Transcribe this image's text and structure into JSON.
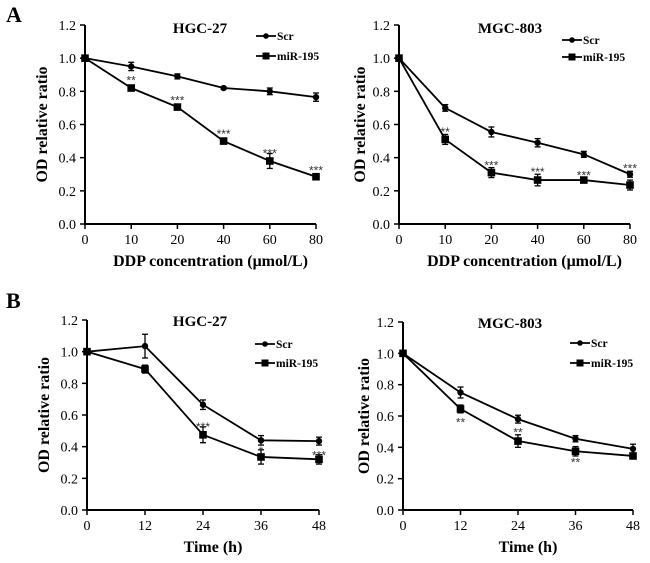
{
  "figure": {
    "panel_labels": [
      "A",
      "B"
    ]
  },
  "chart_data": [
    {
      "id": "A-HGC27",
      "panel": "A",
      "type": "line",
      "title": "HGC-27",
      "xlabel": "DDP concentration (μmol/L)",
      "ylabel": "OD relative ratio",
      "x_scale": "categorical",
      "categories": [
        "0",
        "10",
        "20",
        "40",
        "60",
        "80"
      ],
      "ylim": [
        0,
        1.2
      ],
      "yticks": [
        "0.0",
        "0.2",
        "0.4",
        "0.6",
        "0.8",
        "1.0",
        "1.2"
      ],
      "legend": "top-right",
      "grid": false,
      "series": [
        {
          "name": "Scr",
          "marker": "circle",
          "values": [
            1.0,
            0.95,
            0.89,
            0.82,
            0.8,
            0.765
          ],
          "errors": [
            0,
            0.025,
            0.015,
            0.008,
            0.02,
            0.025
          ]
        },
        {
          "name": "miR-195",
          "marker": "square",
          "values": [
            1.0,
            0.82,
            0.705,
            0.5,
            0.38,
            0.285
          ],
          "errors": [
            0,
            0.015,
            0.015,
            0.012,
            0.045,
            0.012
          ]
        }
      ],
      "annotations": [
        {
          "x": "10",
          "text": "**",
          "y": 0.87
        },
        {
          "x": "20",
          "text": "***",
          "y": 0.75
        },
        {
          "x": "40",
          "text": "***",
          "y": 0.55
        },
        {
          "x": "60",
          "text": "***",
          "y": 0.43
        },
        {
          "x": "80",
          "text": "***",
          "y": 0.33
        }
      ]
    },
    {
      "id": "A-MGC803",
      "panel": "A",
      "type": "line",
      "title": "MGC-803",
      "xlabel": "DDP concentration (μmol/L)",
      "ylabel": "OD relative ratio",
      "x_scale": "categorical",
      "categories": [
        "0",
        "10",
        "20",
        "40",
        "60",
        "80"
      ],
      "ylim": [
        0,
        1.2
      ],
      "yticks": [
        "0.0",
        "0.2",
        "0.4",
        "0.6",
        "0.8",
        "1.0",
        "1.2"
      ],
      "legend": "top-right",
      "grid": false,
      "series": [
        {
          "name": "Scr",
          "marker": "circle",
          "values": [
            1.0,
            0.7,
            0.555,
            0.49,
            0.42,
            0.3
          ],
          "errors": [
            0,
            0.02,
            0.03,
            0.025,
            0.018,
            0.018
          ]
        },
        {
          "name": "miR-195",
          "marker": "square",
          "values": [
            1.0,
            0.51,
            0.31,
            0.265,
            0.265,
            0.235
          ],
          "errors": [
            0,
            0.03,
            0.03,
            0.035,
            0.01,
            0.03
          ]
        }
      ],
      "annotations": [
        {
          "x": "10",
          "text": "**",
          "y": 0.56
        },
        {
          "x": "20",
          "text": "***",
          "y": 0.36
        },
        {
          "x": "40",
          "text": "***",
          "y": 0.32
        },
        {
          "x": "60",
          "text": "***",
          "y": 0.3
        },
        {
          "x": "80",
          "text": "***",
          "y": 0.34
        }
      ]
    },
    {
      "id": "B-HGC27",
      "panel": "B",
      "type": "line",
      "title": "HGC-27",
      "xlabel": "Time (h)",
      "ylabel": "OD relative ratio",
      "x_scale": "categorical",
      "categories": [
        "0",
        "12",
        "24",
        "36",
        "48"
      ],
      "ylim": [
        0,
        1.2
      ],
      "yticks": [
        "0.0",
        "0.2",
        "0.4",
        "0.6",
        "0.8",
        "1.0",
        "1.2"
      ],
      "legend": "top-right",
      "grid": false,
      "series": [
        {
          "name": "Scr",
          "marker": "circle",
          "values": [
            1.0,
            1.035,
            0.665,
            0.44,
            0.435
          ],
          "errors": [
            0,
            0.075,
            0.03,
            0.03,
            0.025
          ]
        },
        {
          "name": "miR-195",
          "marker": "square",
          "values": [
            1.0,
            0.89,
            0.475,
            0.335,
            0.32
          ],
          "errors": [
            0,
            0.025,
            0.05,
            0.045,
            0.03
          ]
        }
      ],
      "annotations": [
        {
          "x": "24",
          "text": "***",
          "y": 0.53
        },
        {
          "x": "36",
          "text": "*",
          "y": 0.38
        },
        {
          "x": "48",
          "text": "***",
          "y": 0.35
        }
      ]
    },
    {
      "id": "B-MGC803",
      "panel": "B",
      "type": "line",
      "title": "MGC-803",
      "xlabel": "Time (h)",
      "ylabel": "OD relative ratio",
      "x_scale": "categorical",
      "categories": [
        "0",
        "12",
        "24",
        "36",
        "48"
      ],
      "ylim": [
        0,
        1.2
      ],
      "yticks": [
        "0.0",
        "0.2",
        "0.4",
        "0.6",
        "0.8",
        "1.0",
        "1.2"
      ],
      "legend": "top-right",
      "grid": false,
      "series": [
        {
          "name": "Scr",
          "marker": "circle",
          "values": [
            1.0,
            0.75,
            0.58,
            0.455,
            0.39
          ],
          "errors": [
            0,
            0.035,
            0.025,
            0.02,
            0.03
          ]
        },
        {
          "name": "miR-195",
          "marker": "square",
          "values": [
            1.0,
            0.645,
            0.44,
            0.375,
            0.345
          ],
          "errors": [
            0,
            0.025,
            0.04,
            0.03,
            0.015
          ]
        }
      ],
      "annotations": [
        {
          "x": "12",
          "text": "**",
          "y": 0.565,
          "below": true
        },
        {
          "x": "24",
          "text": "**",
          "y": 0.5,
          "below": true
        },
        {
          "x": "36",
          "text": "**",
          "y": 0.31,
          "below": true
        }
      ]
    }
  ]
}
